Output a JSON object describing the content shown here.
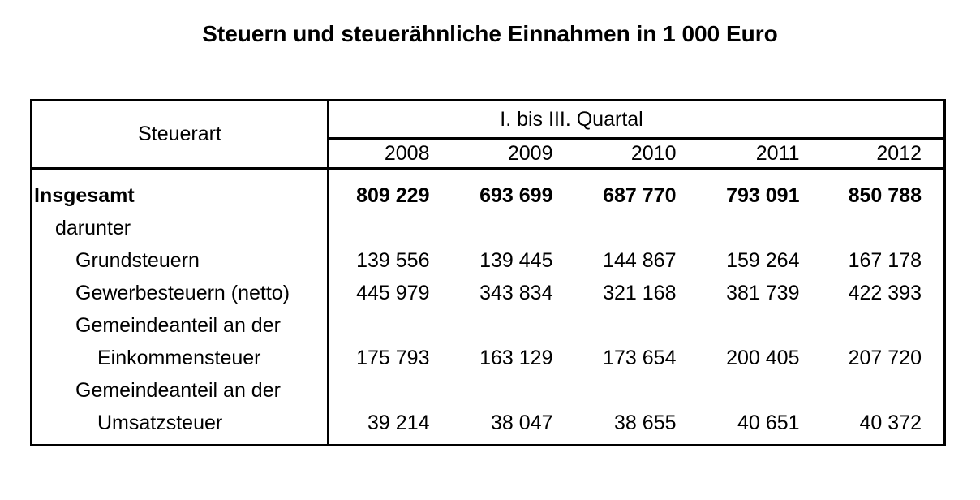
{
  "title": "Steuern und steuerähnliche Einnahmen in 1 000 Euro",
  "table": {
    "header": {
      "steuerart": "Steuerart",
      "quartal": "I. bis III. Quartal",
      "years": [
        "2008",
        "2009",
        "2010",
        "2011",
        "2012"
      ]
    },
    "rows": [
      {
        "label": "Insgesamt",
        "indent": 0,
        "bold": true,
        "values": [
          "809 229",
          "693 699",
          "687 770",
          "793 091",
          "850 788"
        ]
      },
      {
        "label": "darunter",
        "indent": 1,
        "bold": false,
        "values": [
          "",
          "",
          "",
          "",
          ""
        ]
      },
      {
        "label": "Grundsteuern",
        "indent": 2,
        "bold": false,
        "values": [
          "139 556",
          "139 445",
          "144 867",
          "159 264",
          "167 178"
        ]
      },
      {
        "label": "Gewerbesteuern (netto)",
        "indent": 2,
        "bold": false,
        "values": [
          "445 979",
          "343 834",
          "321 168",
          "381 739",
          "422 393"
        ]
      },
      {
        "label": "Gemeindeanteil an der",
        "indent": 2,
        "bold": false,
        "values": [
          "",
          "",
          "",
          "",
          ""
        ]
      },
      {
        "label": "Einkommensteuer",
        "indent": 3,
        "bold": false,
        "values": [
          "175 793",
          "163 129",
          "173 654",
          "200 405",
          "207 720"
        ]
      },
      {
        "label": "Gemeindeanteil an der",
        "indent": 2,
        "bold": false,
        "values": [
          "",
          "",
          "",
          "",
          ""
        ]
      },
      {
        "label": "Umsatzsteuer",
        "indent": 3,
        "bold": false,
        "values": [
          "39 214",
          "38 047",
          "38 655",
          "40 651",
          "40 372"
        ]
      }
    ]
  },
  "chart_data": {
    "type": "table",
    "title": "Steuern und steuerähnliche Einnahmen in 1 000 Euro",
    "unit": "1 000 Euro",
    "row_axis_label": "Steuerart",
    "column_group_label": "I. bis III. Quartal",
    "subset_label": "darunter",
    "categories": [
      "2008",
      "2009",
      "2010",
      "2011",
      "2012"
    ],
    "series": [
      {
        "name": "Insgesamt",
        "values": [
          809229,
          693699,
          687770,
          793091,
          850788
        ]
      },
      {
        "name": "Grundsteuern",
        "values": [
          139556,
          139445,
          144867,
          159264,
          167178
        ]
      },
      {
        "name": "Gewerbesteuern (netto)",
        "values": [
          445979,
          343834,
          321168,
          381739,
          422393
        ]
      },
      {
        "name": "Gemeindeanteil an der Einkommensteuer",
        "values": [
          175793,
          163129,
          173654,
          200405,
          207720
        ]
      },
      {
        "name": "Gemeindeanteil an der Umsatzsteuer",
        "values": [
          39214,
          38047,
          38655,
          40651,
          40372
        ]
      }
    ]
  }
}
